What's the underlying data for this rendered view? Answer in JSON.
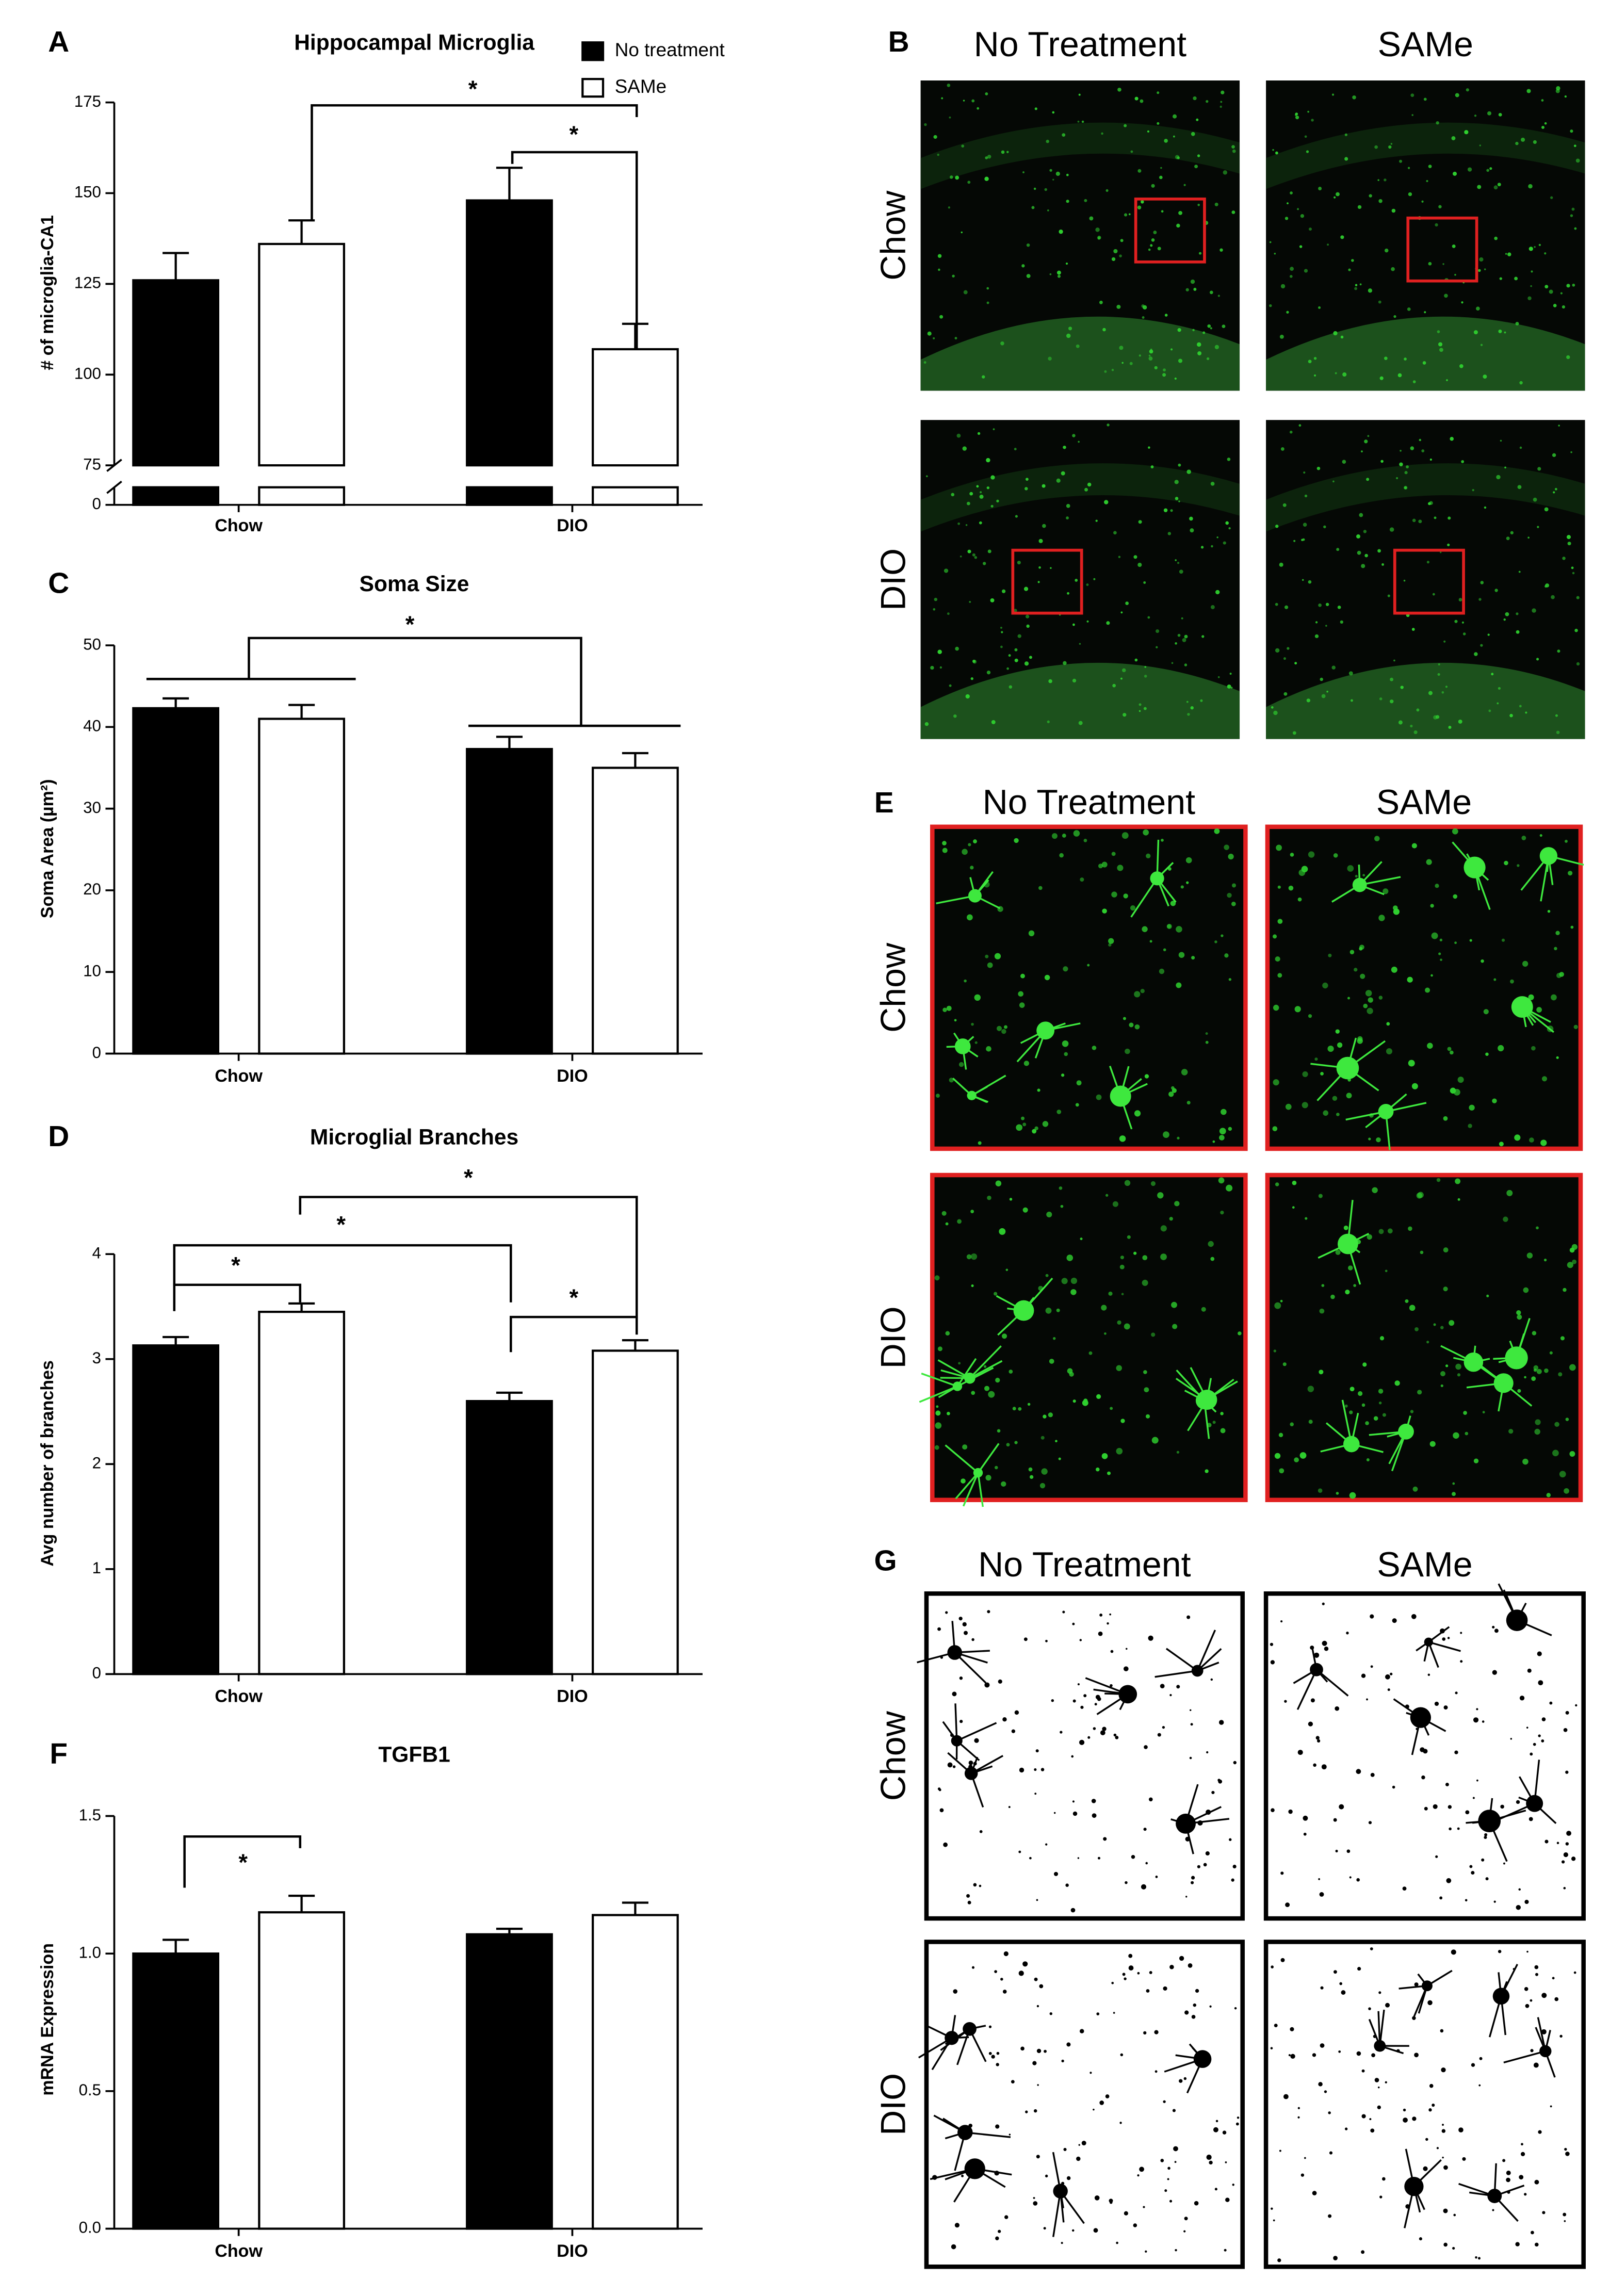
{
  "chart_data": [
    {
      "type": "bar",
      "panel_label": "A",
      "title": "Hippocampal Microglia",
      "y_label": "# of microglia-CA1",
      "categories": [
        "Chow",
        "DIO"
      ],
      "series": [
        {
          "name": "No treatment",
          "color": "#000000",
          "values": [
            126,
            148
          ],
          "errors": [
            7.5,
            9
          ]
        },
        {
          "name": "SAMe",
          "color": "#ffffff",
          "values": [
            136,
            107
          ],
          "errors": [
            6.5,
            7
          ]
        }
      ],
      "ylim": [
        0,
        175
      ],
      "axis_break": [
        0,
        75
      ],
      "yticks": [
        0,
        75,
        100,
        125,
        150,
        175
      ],
      "annotations": [
        "*",
        "*"
      ]
    },
    {
      "type": "bar",
      "panel_label": "C",
      "title": "Soma Size",
      "y_label": "Soma Area (µm²)",
      "categories": [
        "Chow",
        "DIO"
      ],
      "series": [
        {
          "color": "#000000",
          "values": [
            42.3,
            37.3
          ],
          "errors": [
            1.2,
            1.5
          ]
        },
        {
          "color": "#ffffff",
          "values": [
            41,
            35
          ],
          "errors": [
            1.7,
            1.8
          ]
        }
      ],
      "ylim": [
        0,
        50
      ],
      "yticks": [
        0,
        10,
        20,
        30,
        40,
        50
      ],
      "annotations": [
        "*"
      ]
    },
    {
      "type": "bar",
      "panel_label": "D",
      "title": "Microglial Branches",
      "y_label": "Avg number of branches",
      "categories": [
        "Chow",
        "DIO"
      ],
      "series": [
        {
          "color": "#000000",
          "values": [
            3.13,
            2.6
          ],
          "errors": [
            0.08,
            0.08
          ]
        },
        {
          "color": "#ffffff",
          "values": [
            3.45,
            3.08
          ],
          "errors": [
            0.08,
            0.1
          ]
        }
      ],
      "ylim": [
        0,
        4
      ],
      "yticks": [
        0,
        1,
        2,
        3,
        4
      ],
      "annotations": [
        "*",
        "*",
        "*",
        "*"
      ]
    },
    {
      "type": "bar",
      "panel_label": "F",
      "title": "TGFB1",
      "y_label": "mRNA Expression",
      "categories": [
        "Chow",
        "DIO"
      ],
      "series": [
        {
          "color": "#000000",
          "values": [
            1.0,
            1.07
          ],
          "errors": [
            0.05,
            0.02
          ]
        },
        {
          "color": "#ffffff",
          "values": [
            1.15,
            1.14
          ],
          "errors": [
            0.06,
            0.045
          ]
        }
      ],
      "ylim": [
        0,
        1.5
      ],
      "yticks": [
        {
          "value": 0,
          "label": "0.0"
        },
        0.5,
        {
          "value": 1,
          "label": "1.0"
        },
        1.5
      ],
      "annotations": [
        "*"
      ]
    }
  ],
  "image_panels": [
    {
      "panel_label": "B",
      "columns": [
        "No Treatment",
        "SAMe"
      ],
      "rows": [
        "Chow",
        "DIO"
      ]
    },
    {
      "panel_label": "E",
      "columns": [
        "No Treatment",
        "SAMe"
      ],
      "rows": [
        "Chow",
        "DIO"
      ]
    },
    {
      "panel_label": "G",
      "columns": [
        "No Treatment",
        "SAMe"
      ],
      "rows": [
        "Chow",
        "DIO"
      ]
    }
  ]
}
